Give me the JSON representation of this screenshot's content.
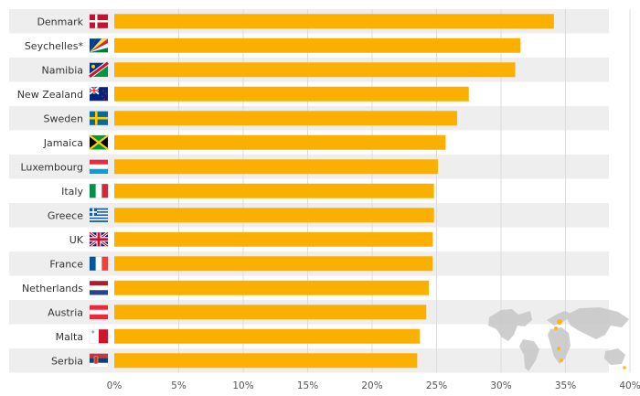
{
  "chart_data": {
    "type": "bar",
    "orientation": "horizontal",
    "categories": [
      "Denmark",
      "Seychelles*",
      "Namibia",
      "New Zealand",
      "Sweden",
      "Jamaica",
      "Luxembourg",
      "Italy",
      "Greece",
      "UK",
      "France",
      "Netherlands",
      "Austria",
      "Malta",
      "Serbia"
    ],
    "values": [
      34.1,
      31.5,
      31.1,
      27.5,
      26.6,
      25.7,
      25.1,
      24.8,
      24.8,
      24.7,
      24.7,
      24.4,
      24.2,
      23.7,
      23.5
    ],
    "flag_icons": [
      "flag-denmark-icon",
      "flag-seychelles-icon",
      "flag-namibia-icon",
      "flag-new-zealand-icon",
      "flag-sweden-icon",
      "flag-jamaica-icon",
      "flag-luxembourg-icon",
      "flag-italy-icon",
      "flag-greece-icon",
      "flag-uk-icon",
      "flag-france-icon",
      "flag-netherlands-icon",
      "flag-austria-icon",
      "flag-malta-icon",
      "flag-serbia-icon"
    ],
    "x_ticks": [
      "0%",
      "5%",
      "10%",
      "15%",
      "20%",
      "25%",
      "30%",
      "35%",
      "40%"
    ],
    "xlim": [
      0,
      40
    ],
    "grid": true,
    "bar_color": "#fbb000",
    "stripe_color": "#eeeeee",
    "label_color": "#333333",
    "decoration": "world-map-icon"
  }
}
